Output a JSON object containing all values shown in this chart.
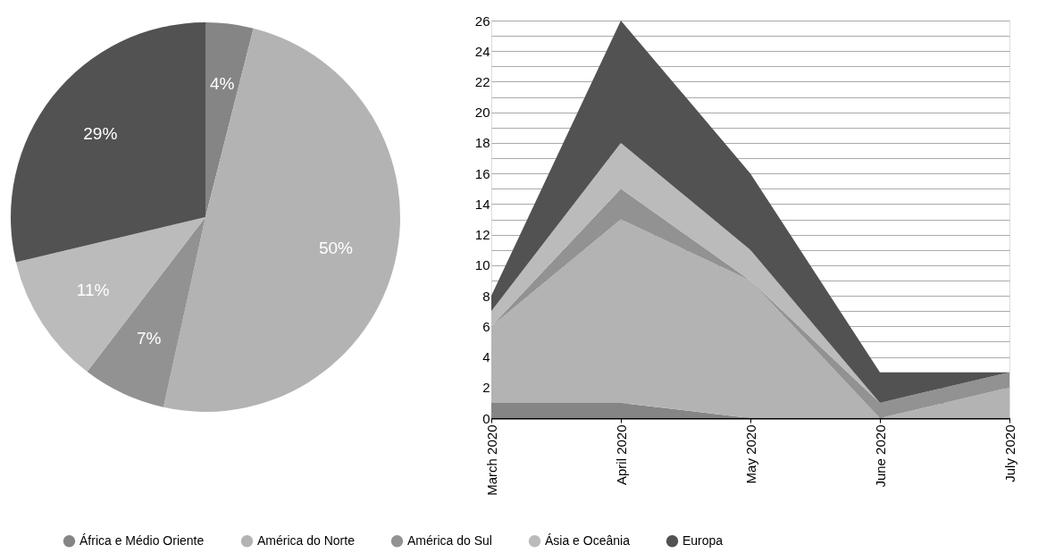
{
  "chart_data": [
    {
      "type": "pie",
      "categories": [
        "África e Médio Oriente",
        "América do Norte",
        "América do Sul",
        "Ásia e Oceânia",
        "Europa"
      ],
      "values": [
        4,
        50,
        7,
        11,
        29
      ],
      "colors": [
        "#858585",
        "#b3b3b3",
        "#929292",
        "#bbbbbb",
        "#525252"
      ],
      "value_labels": [
        "4%",
        "50%",
        "7%",
        "11%",
        "29%"
      ],
      "legend": "bottom"
    },
    {
      "type": "area",
      "stacked": true,
      "categories": [
        "March 2020",
        "April 2020",
        "May 2020",
        "June 2020",
        "July 2020"
      ],
      "series": [
        {
          "color": "#858585",
          "values": [
            1,
            1,
            0,
            0,
            0
          ]
        },
        {
          "color": "#b3b3b3",
          "values": [
            5,
            12,
            9,
            0,
            2
          ]
        },
        {
          "color": "#929292",
          "values": [
            0,
            2,
            0,
            1,
            1
          ]
        },
        {
          "color": "#bbbbbb",
          "values": [
            1,
            3,
            2,
            0,
            0
          ]
        },
        {
          "color": "#525252",
          "values": [
            1,
            8,
            5,
            2,
            0
          ]
        }
      ],
      "ylim": [
        0,
        26
      ],
      "yticks": [
        0,
        {
          "value": 1,
          "label": null
        },
        2,
        {
          "value": 3,
          "label": null
        },
        4,
        {
          "value": 5,
          "label": null
        },
        6,
        {
          "value": 7,
          "label": null
        },
        8,
        {
          "value": 9,
          "label": null
        },
        10,
        {
          "value": 11,
          "label": null
        },
        12,
        {
          "value": 13,
          "label": null
        },
        14,
        {
          "value": 15,
          "label": null
        },
        16,
        {
          "value": 17,
          "label": null
        },
        18,
        {
          "value": 19,
          "label": null
        },
        20,
        {
          "value": 21,
          "label": null
        },
        22,
        {
          "value": 23,
          "label": null
        },
        24,
        {
          "value": 25,
          "label": null
        },
        26
      ],
      "grid": "y"
    }
  ]
}
